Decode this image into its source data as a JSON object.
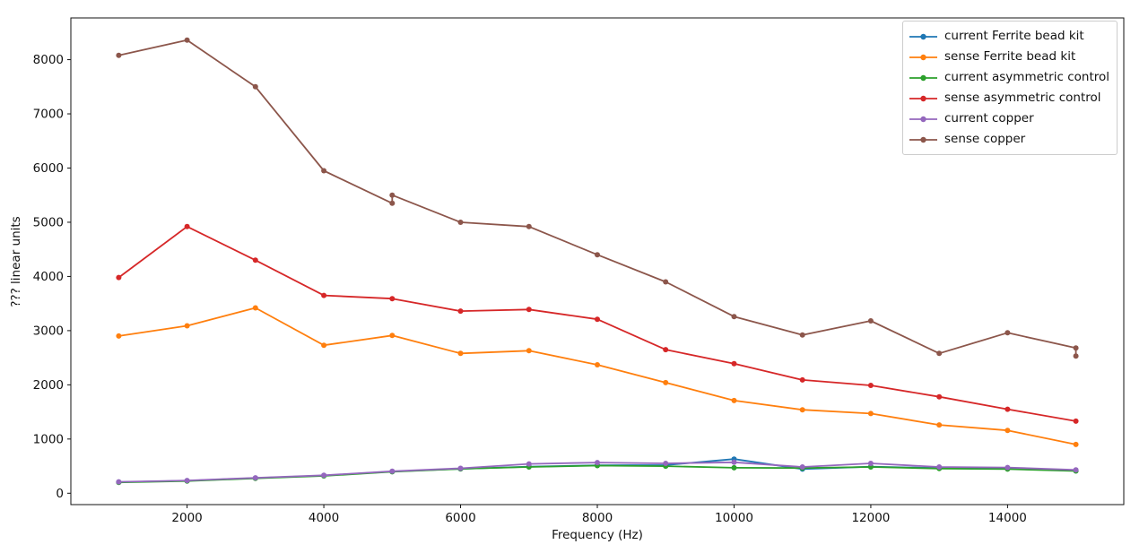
{
  "chart_data": {
    "type": "line",
    "title": "",
    "xlabel": "Frequency (Hz)",
    "ylabel": "??? linear units",
    "x_ticks": [
      2000,
      4000,
      6000,
      8000,
      10000,
      12000,
      14000
    ],
    "y_ticks": [
      0,
      1000,
      2000,
      3000,
      4000,
      5000,
      6000,
      7000,
      8000
    ],
    "xlim": [
      300,
      15700
    ],
    "ylim": [
      -210,
      8770
    ],
    "grid": false,
    "legend_position": "upper-right",
    "marker": "point",
    "series": [
      {
        "name": "current Ferrite bead kit",
        "color": "#1f77b4",
        "x": [
          1000,
          2000,
          3000,
          4000,
          5000,
          6000,
          7000,
          8000,
          9000,
          10000,
          11000,
          12000,
          13000,
          14000,
          15000
        ],
        "y": [
          205,
          230,
          280,
          325,
          400,
          450,
          490,
          515,
          520,
          630,
          445,
          490,
          465,
          455,
          415
        ]
      },
      {
        "name": "sense Ferrite bead kit",
        "color": "#ff7f0e",
        "x": [
          1000,
          2000,
          3000,
          4000,
          5000,
          6000,
          7000,
          8000,
          9000,
          10000,
          11000,
          12000,
          13000,
          14000,
          15000
        ],
        "y": [
          2900,
          3090,
          3420,
          2730,
          2910,
          2580,
          2630,
          2370,
          2040,
          1710,
          1540,
          1470,
          1260,
          1160,
          900
        ]
      },
      {
        "name": "current asymmetric control",
        "color": "#2ca02c",
        "x": [
          1000,
          2000,
          3000,
          4000,
          5000,
          6000,
          7000,
          8000,
          9000,
          10000,
          11000,
          12000,
          13000,
          14000,
          15000
        ],
        "y": [
          200,
          225,
          275,
          320,
          395,
          450,
          485,
          510,
          500,
          470,
          465,
          485,
          455,
          445,
          410
        ]
      },
      {
        "name": "sense asymmetric control",
        "color": "#d62728",
        "x": [
          1000,
          2000,
          3000,
          4000,
          5000,
          6000,
          7000,
          8000,
          9000,
          10000,
          11000,
          12000,
          13000,
          14000,
          15000
        ],
        "y": [
          3980,
          4920,
          4300,
          3650,
          3590,
          3360,
          3390,
          3210,
          2650,
          2390,
          2090,
          1990,
          1780,
          1550,
          1330
        ]
      },
      {
        "name": "current copper",
        "color": "#9467bd",
        "x": [
          1000,
          2000,
          3000,
          4000,
          5000,
          6000,
          7000,
          8000,
          9000,
          10000,
          11000,
          12000,
          13000,
          14000,
          15000
        ],
        "y": [
          210,
          235,
          285,
          330,
          405,
          460,
          540,
          565,
          550,
          570,
          485,
          550,
          485,
          475,
          430
        ]
      },
      {
        "name": "sense copper",
        "color": "#8c564b",
        "x": [
          1000,
          2000,
          3000,
          4000,
          5000,
          5000,
          6000,
          7000,
          8000,
          9000,
          10000,
          11000,
          12000,
          13000,
          14000,
          15000,
          15000
        ],
        "y": [
          8080,
          8360,
          7500,
          5950,
          5350,
          5500,
          5000,
          4920,
          4400,
          3900,
          3260,
          2920,
          3180,
          2580,
          2960,
          2680,
          2530
        ]
      }
    ]
  }
}
